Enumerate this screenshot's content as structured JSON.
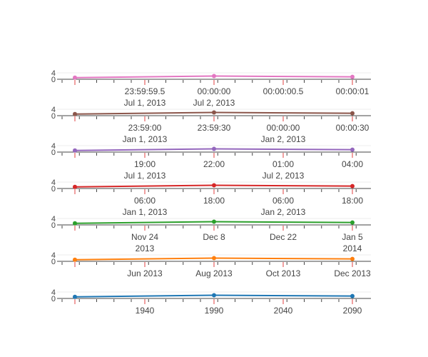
{
  "chart_data": [
    {
      "type": "line",
      "color": "#e377c2",
      "x": [
        "1999-12-31 23:59:59.5",
        "2000-01-01 00:00:00",
        "2000-01-01 00:00:00.5"
      ],
      "y": [
        1,
        2,
        1.5
      ],
      "x_ticks": [
        {
          "line1": "23:59:59.5",
          "line2": "Jul 1, 2013"
        },
        {
          "line1": "00:00:00",
          "line2": "Jul 2, 2013"
        },
        {
          "line1": "00:00:00.5",
          "line2": ""
        },
        {
          "line1": "00:00:01",
          "line2": ""
        }
      ],
      "y_ticks": [
        "0",
        "4"
      ],
      "grid": false
    },
    {
      "type": "line",
      "color": "#8c564b",
      "x": [
        "1999-12-31 23:59:30",
        "2000-01-01 00:00:00",
        "2000-01-01 00:00:30"
      ],
      "y": [
        1,
        2,
        1.5
      ],
      "x_ticks": [
        {
          "line1": "23:59:00",
          "line2": "Jan 1, 2013"
        },
        {
          "line1": "23:59:30",
          "line2": ""
        },
        {
          "line1": "00:00:00",
          "line2": "Jan 2, 2013"
        },
        {
          "line1": "00:00:30",
          "line2": ""
        }
      ],
      "y_ticks": [
        "0",
        "4"
      ],
      "grid": false
    },
    {
      "type": "line",
      "color": "#9467bd",
      "x": [
        "19:00",
        "01:00",
        "04:00"
      ],
      "y": [
        1,
        2,
        1.5
      ],
      "x_ticks": [
        {
          "line1": "19:00",
          "line2": "Jul 1, 2013"
        },
        {
          "line1": "22:00",
          "line2": ""
        },
        {
          "line1": "01:00",
          "line2": "Jul 2, 2013"
        },
        {
          "line1": "04:00",
          "line2": ""
        }
      ],
      "y_ticks": [
        "0",
        "4"
      ],
      "grid": false
    },
    {
      "type": "line",
      "color": "#d62728",
      "x": [
        "Jan 1 00:00",
        "Jan 2 00:00",
        "Jan 3 00:00"
      ],
      "y": [
        1,
        2,
        1.5
      ],
      "x_ticks": [
        {
          "line1": "06:00",
          "line2": "Jan 1, 2013"
        },
        {
          "line1": "18:00",
          "line2": ""
        },
        {
          "line1": "06:00",
          "line2": "Jan 2, 2013"
        },
        {
          "line1": "18:00",
          "line2": ""
        }
      ],
      "y_ticks": [
        "0",
        "4"
      ],
      "grid": false
    },
    {
      "type": "line",
      "color": "#2ca02c",
      "x": [
        "2013-11-17",
        "2013-12-15",
        "2014-01-12"
      ],
      "y": [
        1,
        2,
        1.5
      ],
      "x_ticks": [
        {
          "line1": "Nov 24",
          "line2": "2013"
        },
        {
          "line1": "Dec 8",
          "line2": ""
        },
        {
          "line1": "Dec 22",
          "line2": ""
        },
        {
          "line1": "Jan 5",
          "line2": "2014"
        }
      ],
      "y_ticks": [
        "0",
        "4"
      ],
      "grid": false
    },
    {
      "type": "line",
      "color": "#ff7f0e",
      "x": [
        "2013-04",
        "2013-09",
        "2014-02"
      ],
      "y": [
        1,
        2,
        1.5
      ],
      "x_ticks": [
        {
          "line1": "Jun 2013",
          "line2": ""
        },
        {
          "line1": "Aug 2013",
          "line2": ""
        },
        {
          "line1": "Oct 2013",
          "line2": ""
        },
        {
          "line1": "Dec 2013",
          "line2": ""
        }
      ],
      "y_ticks": [
        "0",
        "4"
      ],
      "grid": false
    },
    {
      "type": "line",
      "color": "#1f77b4",
      "x": [
        1900,
        2000,
        2100
      ],
      "y": [
        1,
        2,
        1.5
      ],
      "x_ticks": [
        {
          "line1": "1940",
          "line2": ""
        },
        {
          "line1": "1990",
          "line2": ""
        },
        {
          "line1": "2040",
          "line2": ""
        },
        {
          "line1": "2090",
          "line2": ""
        }
      ],
      "y_ticks": [
        "0",
        "4"
      ],
      "grid": false
    }
  ]
}
